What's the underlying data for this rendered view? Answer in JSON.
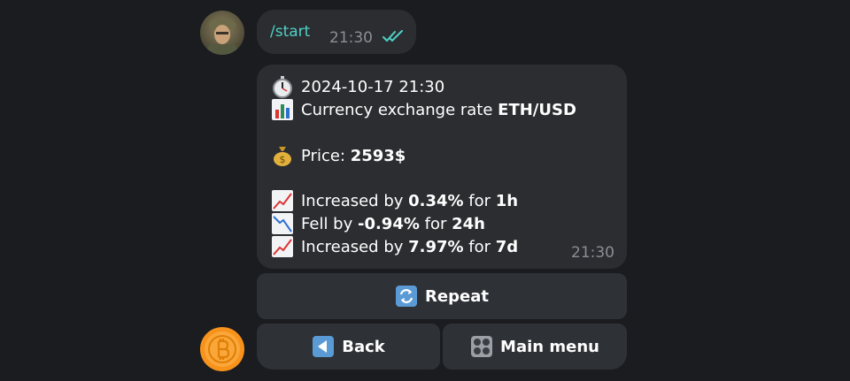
{
  "chat": {
    "outgoing": {
      "text": "/start",
      "time": "21:30"
    },
    "incoming": {
      "timestamp": "2024-10-17 21:30",
      "rate_prefix": "Currency exchange rate ",
      "pair": "ETH/USD",
      "price_label": "Price: ",
      "price_value": "2593$",
      "changes": [
        {
          "prefix": "Increased by ",
          "value": "0.34%",
          "for_text": " for ",
          "period": "1h",
          "icon": "chart-increasing-icon"
        },
        {
          "prefix": "Fell by ",
          "value": "-0.94%",
          "for_text": " for ",
          "period": "24h",
          "icon": "chart-decreasing-icon"
        },
        {
          "prefix": "Increased by ",
          "value": "7.97%",
          "for_text": " for ",
          "period": "7d",
          "icon": "chart-increasing-icon"
        }
      ],
      "time": "21:30"
    }
  },
  "keyboard": {
    "repeat": "Repeat",
    "back": "Back",
    "main_menu": "Main menu"
  },
  "colors": {
    "background": "#1b1c20",
    "bubble": "#2b2d31",
    "button": "#2e3136",
    "command": "#4fd1c5",
    "bitcoin": "#f7931a"
  }
}
